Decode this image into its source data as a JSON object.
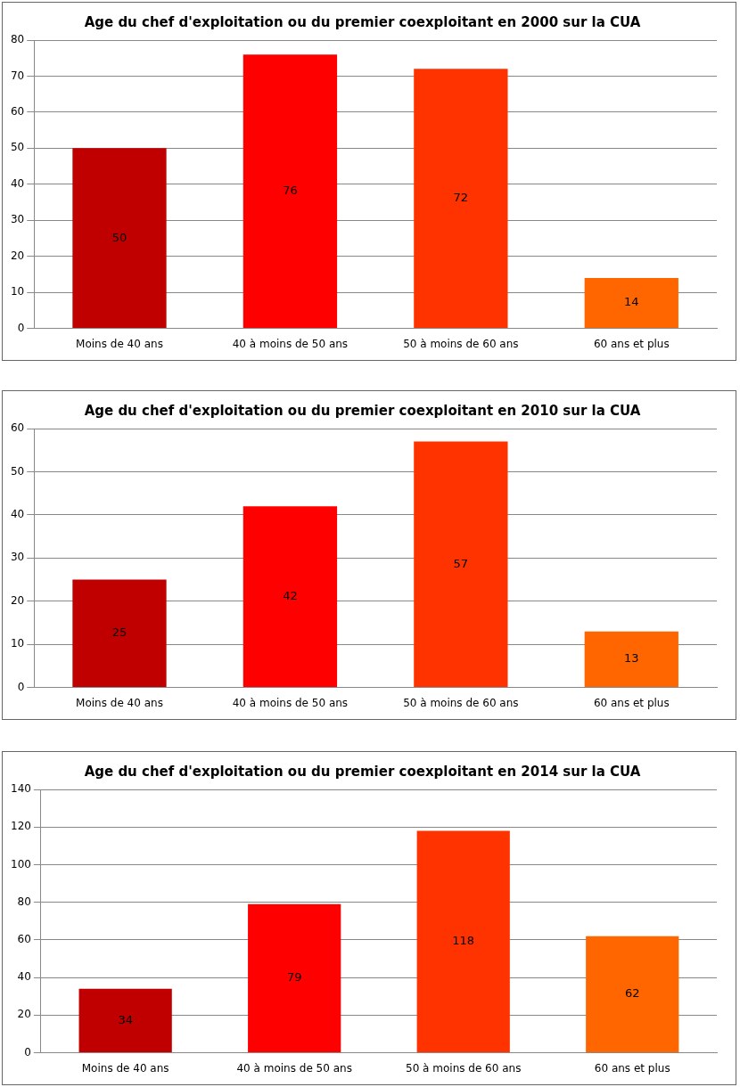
{
  "chart_data": [
    {
      "type": "bar",
      "title": "Age du chef d'exploitation ou du premier coexploitant en 2000 sur la CUA",
      "categories": [
        "Moins de 40 ans",
        "40 à moins de 50 ans",
        "50 à moins de 60 ans",
        "60 ans et plus"
      ],
      "values": [
        50,
        76,
        72,
        14
      ],
      "colors": [
        "#c00000",
        "#ff0000",
        "#ff3300",
        "#ff6600"
      ],
      "ylim": [
        0,
        80
      ],
      "yticks": [
        0,
        10,
        20,
        30,
        40,
        50,
        60,
        70,
        80
      ],
      "grid": "y",
      "data_labels": true
    },
    {
      "type": "bar",
      "title": "Age du chef d'exploitation ou du premier coexploitant en 2010 sur la CUA",
      "categories": [
        "Moins de 40 ans",
        "40 à moins de 50 ans",
        "50 à moins de 60 ans",
        "60 ans et plus"
      ],
      "values": [
        25,
        42,
        57,
        13
      ],
      "colors": [
        "#c00000",
        "#ff0000",
        "#ff3300",
        "#ff6600"
      ],
      "ylim": [
        0,
        60
      ],
      "yticks": [
        0,
        10,
        20,
        30,
        40,
        50,
        60
      ],
      "grid": "y",
      "data_labels": true
    },
    {
      "type": "bar",
      "title": "Age du chef d'exploitation ou du premier coexploitant en 2014 sur la CUA",
      "categories": [
        "Moins de 40 ans",
        "40 à moins de 50 ans",
        "50 à moins de 60 ans",
        "60 ans et plus"
      ],
      "values": [
        34,
        79,
        118,
        62
      ],
      "colors": [
        "#c00000",
        "#ff0000",
        "#ff3300",
        "#ff6600"
      ],
      "ylim": [
        0,
        140
      ],
      "yticks": [
        0,
        20,
        40,
        60,
        80,
        100,
        120,
        140
      ],
      "grid": "y",
      "data_labels": true
    }
  ]
}
